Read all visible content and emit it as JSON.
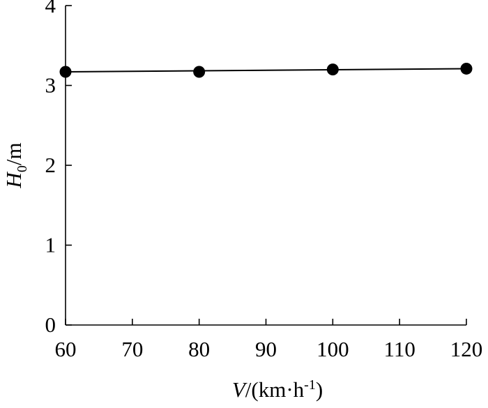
{
  "chart_data": {
    "type": "line",
    "xlabel": {
      "main": "V",
      "rest": "/(km·h",
      "sup": "-1",
      "close": ")"
    },
    "ylabel": {
      "main": "H",
      "sub": "0",
      "rest": "/m"
    },
    "xlim": [
      60,
      120
    ],
    "ylim": [
      0,
      4
    ],
    "x_ticks": [
      60,
      70,
      80,
      90,
      100,
      110,
      120
    ],
    "y_ticks": [
      0,
      1,
      2,
      3,
      4
    ],
    "grid": false,
    "series": [
      {
        "x": [
          60,
          80,
          100,
          120
        ],
        "y": [
          3.17,
          3.17,
          3.2,
          3.21
        ],
        "fit_line": {
          "x": [
            60,
            120
          ],
          "y": [
            3.17,
            3.21
          ]
        },
        "marker": "filled-circle",
        "color": "#000000"
      }
    ]
  }
}
